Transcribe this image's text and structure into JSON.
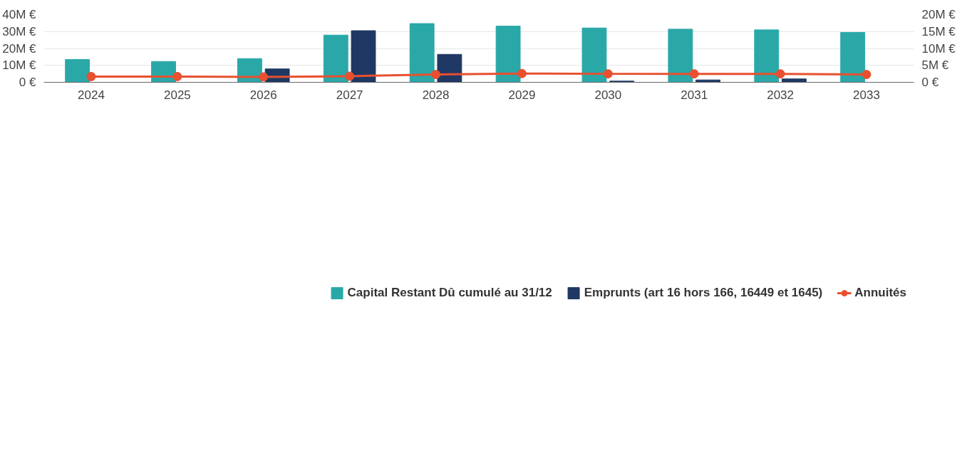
{
  "chart_data": {
    "type": "bar",
    "categories": [
      "2024",
      "2025",
      "2026",
      "2027",
      "2028",
      "2029",
      "2030",
      "2031",
      "2032",
      "2033"
    ],
    "series": [
      {
        "name": "Capital Restant Dû cumulé au 31/12",
        "color": "#2aa8a8",
        "values": [
          13.5,
          12.3,
          14.0,
          27.9,
          34.7,
          33.2,
          32.1,
          31.4,
          31.0,
          29.5
        ]
      },
      {
        "name": "Emprunts (art 16 hors 166, 16449 et 1645)",
        "color": "#1f3864",
        "values": [
          0,
          0,
          7.9,
          30.5,
          16.5,
          0,
          0.7,
          1.4,
          2.0,
          0
        ]
      },
      {
        "name": "Annuités",
        "color": "#e8502f",
        "type": "line",
        "axis": "y2",
        "marker": "circle",
        "values": [
          1.7,
          1.7,
          1.6,
          1.8,
          2.3,
          2.6,
          2.5,
          2.5,
          2.5,
          2.3
        ]
      }
    ],
    "ylim": [
      0,
      40
    ],
    "yticks": [
      {
        "value": 0,
        "label": "0 €"
      },
      {
        "value": 10,
        "label": "10M €"
      },
      {
        "value": 20,
        "label": "20M €"
      },
      {
        "value": 30,
        "label": "30M €"
      },
      {
        "value": 40,
        "label": "40M €"
      }
    ],
    "y2lim": [
      0,
      20
    ],
    "y2ticks": [
      {
        "value": 0,
        "label": "0 €"
      },
      {
        "value": 5,
        "label": "5M €"
      },
      {
        "value": 10,
        "label": "10M €"
      },
      {
        "value": 15,
        "label": "15M €"
      },
      {
        "value": 20,
        "label": "20M €"
      }
    ],
    "grid": "y",
    "legend": "bottom"
  }
}
